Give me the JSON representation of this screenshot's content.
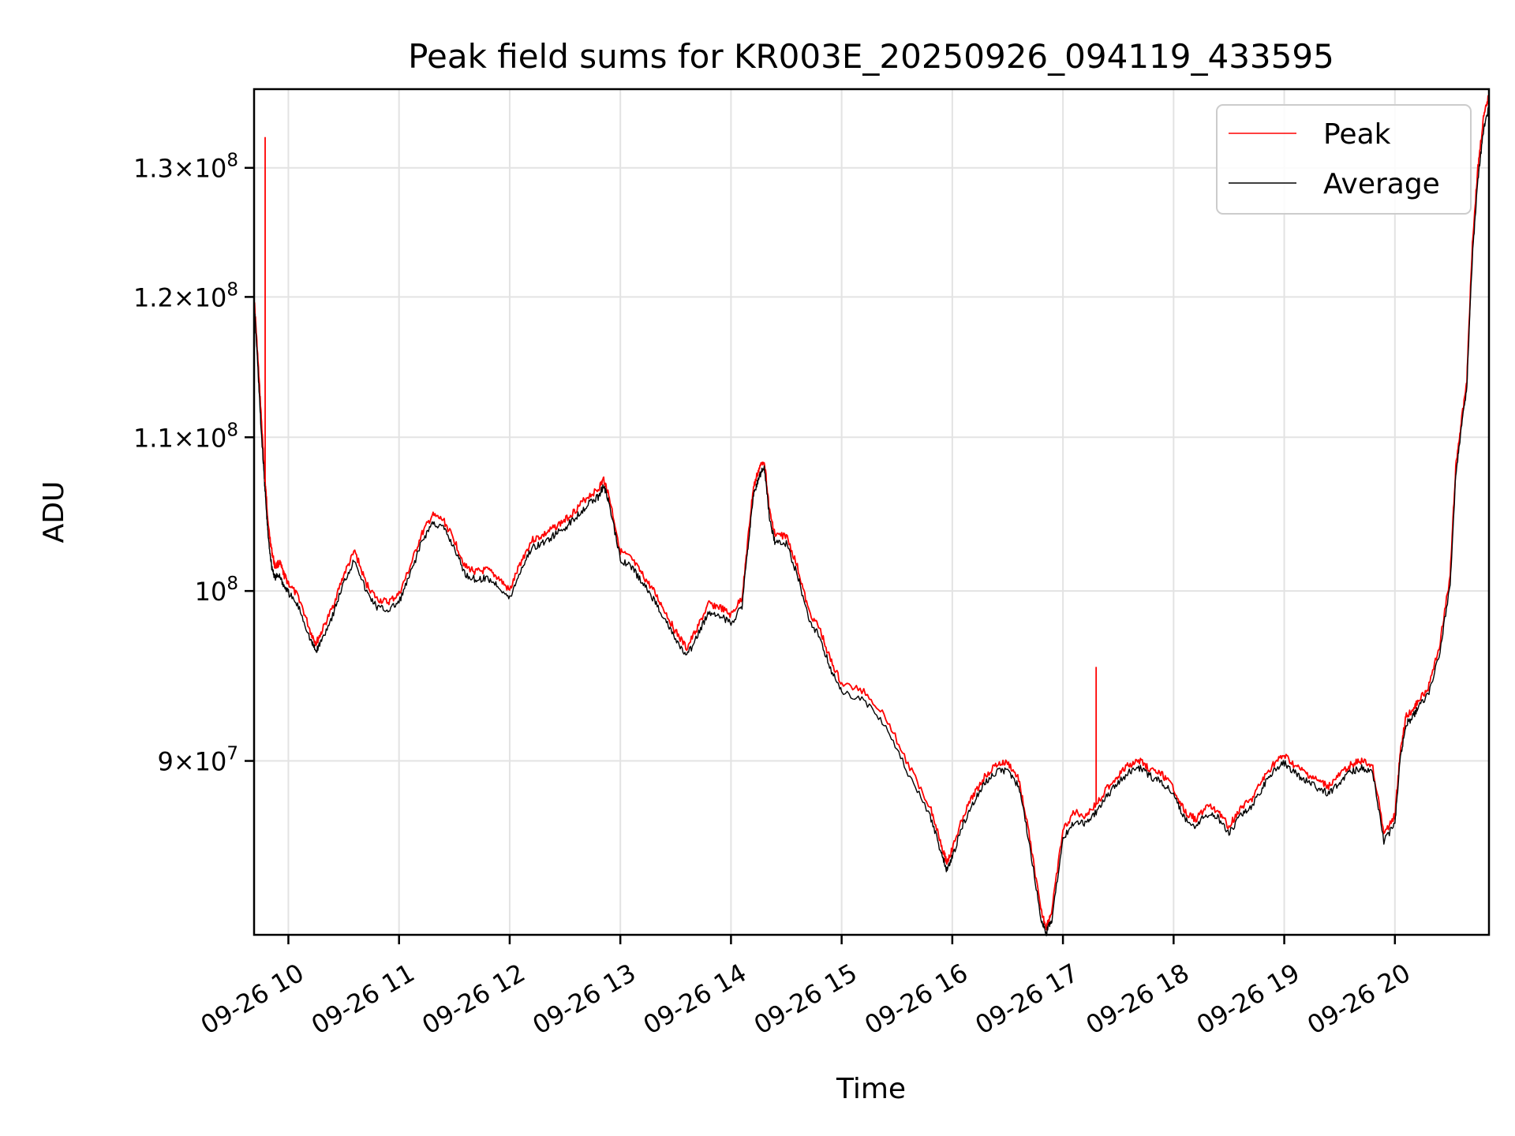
{
  "chart_data": {
    "type": "line",
    "title": "Peak field sums for KR003E_20250926_094119_433595",
    "xlabel": "Time",
    "ylabel": "ADU",
    "xlim": [
      9.69,
      20.85
    ],
    "x_ticks": [
      {
        "value": 10,
        "label": "09-26 10"
      },
      {
        "value": 11,
        "label": "09-26 11"
      },
      {
        "value": 12,
        "label": "09-26 12"
      },
      {
        "value": 13,
        "label": "09-26 13"
      },
      {
        "value": 14,
        "label": "09-26 14"
      },
      {
        "value": 15,
        "label": "09-26 15"
      },
      {
        "value": 16,
        "label": "09-26 16"
      },
      {
        "value": 17,
        "label": "09-26 17"
      },
      {
        "value": 18,
        "label": "09-26 18"
      },
      {
        "value": 19,
        "label": "09-26 19"
      },
      {
        "value": 20,
        "label": "09-26 20"
      }
    ],
    "y_scale": "log",
    "ylim": [
      80800000,
      136500000
    ],
    "y_ticks": [
      {
        "value": 90000000,
        "mantissa": "9",
        "base": "10",
        "exp": "7"
      },
      {
        "value": 100000000,
        "mantissa": "",
        "base": "10",
        "exp": "8"
      },
      {
        "value": 110000000,
        "mantissa": "1.1",
        "base": "10",
        "exp": "8"
      },
      {
        "value": 120000000,
        "mantissa": "1.2",
        "base": "10",
        "exp": "8"
      },
      {
        "value": 130000000,
        "mantissa": "1.3",
        "base": "10",
        "exp": "8"
      }
    ],
    "grid": true,
    "legend_position": "top-right",
    "legend": [
      "Peak",
      "Average"
    ],
    "series": [
      {
        "name": "Peak",
        "color": "#ff0000",
        "x": [
          9.69,
          9.72,
          9.75,
          9.78,
          9.8,
          9.82,
          9.85,
          9.88,
          9.92,
          9.96,
          10.0,
          10.1,
          10.2,
          10.25,
          10.3,
          10.4,
          10.5,
          10.6,
          10.7,
          10.8,
          10.9,
          11.0,
          11.1,
          11.2,
          11.3,
          11.4,
          11.5,
          11.6,
          11.7,
          11.8,
          11.9,
          12.0,
          12.1,
          12.2,
          12.3,
          12.4,
          12.5,
          12.6,
          12.7,
          12.8,
          12.85,
          12.9,
          13.0,
          13.1,
          13.2,
          13.3,
          13.4,
          13.5,
          13.6,
          13.7,
          13.8,
          13.9,
          14.0,
          14.1,
          14.15,
          14.2,
          14.25,
          14.3,
          14.35,
          14.4,
          14.5,
          14.6,
          14.7,
          14.8,
          14.9,
          15.0,
          15.2,
          15.4,
          15.6,
          15.8,
          15.9,
          15.95,
          16.0,
          16.1,
          16.2,
          16.3,
          16.4,
          16.5,
          16.6,
          16.7,
          16.8,
          16.85,
          16.9,
          17.0,
          17.1,
          17.2,
          17.3,
          17.4,
          17.5,
          17.6,
          17.7,
          17.8,
          17.9,
          18.0,
          18.1,
          18.2,
          18.3,
          18.4,
          18.5,
          18.6,
          18.7,
          18.8,
          18.9,
          19.0,
          19.1,
          19.2,
          19.3,
          19.4,
          19.5,
          19.6,
          19.7,
          19.8,
          19.9,
          20.0,
          20.05,
          20.1,
          20.15,
          20.2,
          20.3,
          20.4,
          20.5,
          20.55,
          20.6,
          20.65,
          20.7,
          20.75,
          20.8,
          20.85
        ],
        "y": [
          120000000,
          116000000,
          112000000,
          108000000,
          106000000,
          104000000,
          102500000,
          101500000,
          101800000,
          101000000,
          100500000,
          99500000,
          97500000,
          96800000,
          97500000,
          99000000,
          101000000,
          102500000,
          100500000,
          99500000,
          99300000,
          99800000,
          101500000,
          103500000,
          104800000,
          104500000,
          103200000,
          101500000,
          101200000,
          101300000,
          100800000,
          100000000,
          101800000,
          103200000,
          103500000,
          104000000,
          104500000,
          105200000,
          106000000,
          106500000,
          107200000,
          106000000,
          102500000,
          102000000,
          101000000,
          100000000,
          98800000,
          97500000,
          96500000,
          97800000,
          99200000,
          99000000,
          98500000,
          99600000,
          103000000,
          106500000,
          107800000,
          108500000,
          105000000,
          103500000,
          103500000,
          101500000,
          98800000,
          97700000,
          95800000,
          94400000,
          94000000,
          92500000,
          89800000,
          87500000,
          85500000,
          84500000,
          85200000,
          87000000,
          88200000,
          89200000,
          89800000,
          89900000,
          89000000,
          85800000,
          82000000,
          81200000,
          82000000,
          86200000,
          87200000,
          87000000,
          87600000,
          88500000,
          89200000,
          89800000,
          90000000,
          89500000,
          89200000,
          88500000,
          87200000,
          86800000,
          87500000,
          87300000,
          86400000,
          87400000,
          87800000,
          88900000,
          89800000,
          90300000,
          89700000,
          89300000,
          88900000,
          88600000,
          89200000,
          89800000,
          90000000,
          89700000,
          86000000,
          87000000,
          90600000,
          92500000,
          92800000,
          93300000,
          94200000,
          96500000,
          101000000,
          108000000,
          111000000,
          114000000,
          124000000,
          130000000,
          134000000,
          136000000
        ]
      },
      {
        "name": "Average",
        "color": "#000000",
        "x": [
          9.69,
          9.72,
          9.75,
          9.78,
          9.8,
          9.82,
          9.85,
          9.88,
          9.92,
          9.96,
          10.0,
          10.1,
          10.2,
          10.25,
          10.3,
          10.4,
          10.5,
          10.6,
          10.7,
          10.8,
          10.9,
          11.0,
          11.1,
          11.2,
          11.3,
          11.4,
          11.5,
          11.6,
          11.7,
          11.8,
          11.9,
          12.0,
          12.1,
          12.2,
          12.3,
          12.4,
          12.5,
          12.6,
          12.7,
          12.8,
          12.85,
          12.9,
          13.0,
          13.1,
          13.2,
          13.3,
          13.4,
          13.5,
          13.6,
          13.7,
          13.8,
          13.9,
          14.0,
          14.1,
          14.15,
          14.2,
          14.25,
          14.3,
          14.35,
          14.4,
          14.5,
          14.6,
          14.7,
          14.8,
          14.9,
          15.0,
          15.2,
          15.4,
          15.6,
          15.8,
          15.9,
          15.95,
          16.0,
          16.1,
          16.2,
          16.3,
          16.4,
          16.5,
          16.6,
          16.7,
          16.8,
          16.85,
          16.9,
          17.0,
          17.1,
          17.2,
          17.3,
          17.4,
          17.5,
          17.6,
          17.7,
          17.8,
          17.9,
          18.0,
          18.1,
          18.2,
          18.3,
          18.4,
          18.5,
          18.6,
          18.7,
          18.8,
          18.9,
          19.0,
          19.1,
          19.2,
          19.3,
          19.4,
          19.5,
          19.6,
          19.7,
          19.8,
          19.9,
          20.0,
          20.05,
          20.1,
          20.15,
          20.2,
          20.3,
          20.4,
          20.5,
          20.55,
          20.6,
          20.65,
          20.7,
          20.75,
          20.8,
          20.85
        ],
        "y": [
          119500000,
          115500000,
          111000000,
          107500000,
          105200000,
          103200000,
          101500000,
          100800000,
          101000000,
          100300000,
          99900000,
          98900000,
          97000000,
          96300000,
          97000000,
          98500000,
          100500000,
          102000000,
          100000000,
          99000000,
          98800000,
          99300000,
          101000000,
          103000000,
          104300000,
          104000000,
          102700000,
          101000000,
          100700000,
          100800000,
          100300000,
          99500000,
          101300000,
          102700000,
          103000000,
          103500000,
          104000000,
          104700000,
          105500000,
          106000000,
          106800000,
          105500000,
          102000000,
          101500000,
          100500000,
          99500000,
          98300000,
          97000000,
          96000000,
          97300000,
          98700000,
          98500000,
          98000000,
          99100000,
          102500000,
          106000000,
          107300000,
          108000000,
          104500000,
          103000000,
          103000000,
          101000000,
          98300000,
          97200000,
          95300000,
          93900000,
          93500000,
          92000000,
          89300000,
          87000000,
          85000000,
          84100000,
          84800000,
          86600000,
          87800000,
          88800000,
          89400000,
          89500000,
          88600000,
          85400000,
          81600000,
          80900000,
          81600000,
          85800000,
          86700000,
          86600000,
          87200000,
          88100000,
          88800000,
          89400000,
          89600000,
          89100000,
          88800000,
          88100000,
          86800000,
          86400000,
          87100000,
          86900000,
          86000000,
          87000000,
          87400000,
          88500000,
          89400000,
          89900000,
          89300000,
          88900000,
          88500000,
          88200000,
          88800000,
          89400000,
          89600000,
          89300000,
          85600000,
          86600000,
          90200000,
          92100000,
          92400000,
          92900000,
          93800000,
          96000000,
          100500000,
          107500000,
          110500000,
          113500000,
          123000000,
          129000000,
          133000000,
          135000000
        ]
      }
    ],
    "annotations": [
      {
        "series": "Peak",
        "x": 9.79,
        "y": 132500000,
        "note": "spike"
      },
      {
        "series": "Peak",
        "x": 17.3,
        "y": 95400000,
        "note": "spike"
      }
    ]
  }
}
